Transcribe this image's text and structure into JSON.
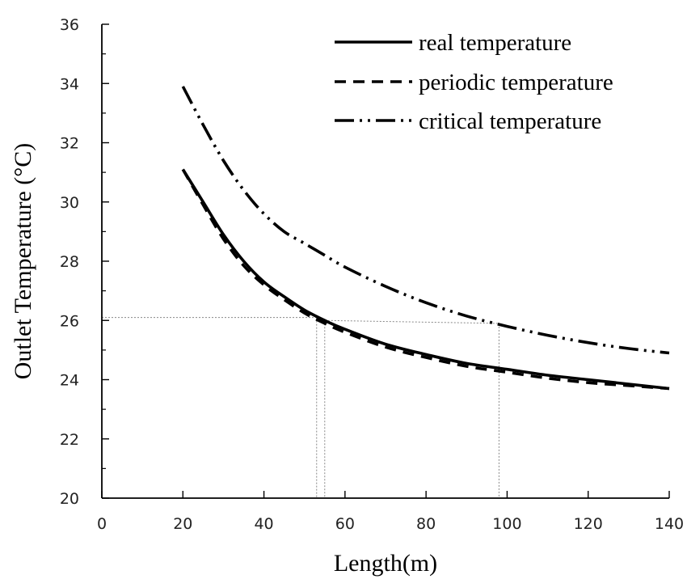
{
  "chart_data": {
    "type": "line",
    "xlabel": "Length(m)",
    "ylabel": "Outlet Temperature (°C)",
    "xlim": [
      0,
      140
    ],
    "ylim": [
      20,
      36
    ],
    "x_ticks": [
      "0",
      "20",
      "40",
      "60",
      "80",
      "100",
      "120",
      "140"
    ],
    "y_ticks": [
      "20",
      "22",
      "24",
      "26",
      "28",
      "30",
      "32",
      "34",
      "36"
    ],
    "grid": false,
    "legend_position": "top-right",
    "series": [
      {
        "name": "real temperature",
        "style": "solid",
        "x": [
          20,
          25,
          30,
          35,
          40,
          45,
          50,
          55,
          60,
          70,
          80,
          90,
          100,
          110,
          120,
          130,
          140
        ],
        "y": [
          31.1,
          30.0,
          28.9,
          28.0,
          27.3,
          26.8,
          26.35,
          26.0,
          25.7,
          25.2,
          24.85,
          24.55,
          24.35,
          24.15,
          24.0,
          23.85,
          23.7
        ]
      },
      {
        "name": "periodic temperature",
        "style": "dashed",
        "x": [
          20,
          25,
          30,
          35,
          40,
          45,
          50,
          55,
          60,
          70,
          80,
          90,
          100,
          110,
          120,
          130,
          140
        ],
        "y": [
          31.1,
          29.9,
          28.75,
          27.85,
          27.2,
          26.7,
          26.25,
          25.9,
          25.6,
          25.1,
          24.75,
          24.45,
          24.25,
          24.05,
          23.9,
          23.8,
          23.7
        ]
      },
      {
        "name": "critical temperature",
        "style": "dash-dot-dot",
        "x": [
          20,
          25,
          30,
          35,
          40,
          45,
          50,
          55,
          60,
          70,
          80,
          90,
          100,
          110,
          120,
          130,
          140
        ],
        "y": [
          33.9,
          32.6,
          31.4,
          30.4,
          29.6,
          29.0,
          28.6,
          28.2,
          27.8,
          27.15,
          26.6,
          26.15,
          25.8,
          25.5,
          25.25,
          25.05,
          24.9
        ]
      }
    ],
    "guide_lines": [
      {
        "from": [
          0,
          26.1
        ],
        "to": [
          53,
          26.1
        ],
        "color": "#888888"
      },
      {
        "from": [
          53,
          26.1
        ],
        "to": [
          53,
          20
        ],
        "color": "#888888"
      },
      {
        "from": [
          55,
          26.0
        ],
        "to": [
          98,
          25.9
        ],
        "color": "#888888"
      },
      {
        "from": [
          55,
          26.0
        ],
        "to": [
          55,
          20
        ],
        "color": "#888888"
      },
      {
        "from": [
          98,
          25.9
        ],
        "to": [
          98,
          20
        ],
        "color": "#888888"
      }
    ],
    "colors": {
      "series": "#000000",
      "guide": "#888888",
      "axis": "#000000"
    }
  }
}
